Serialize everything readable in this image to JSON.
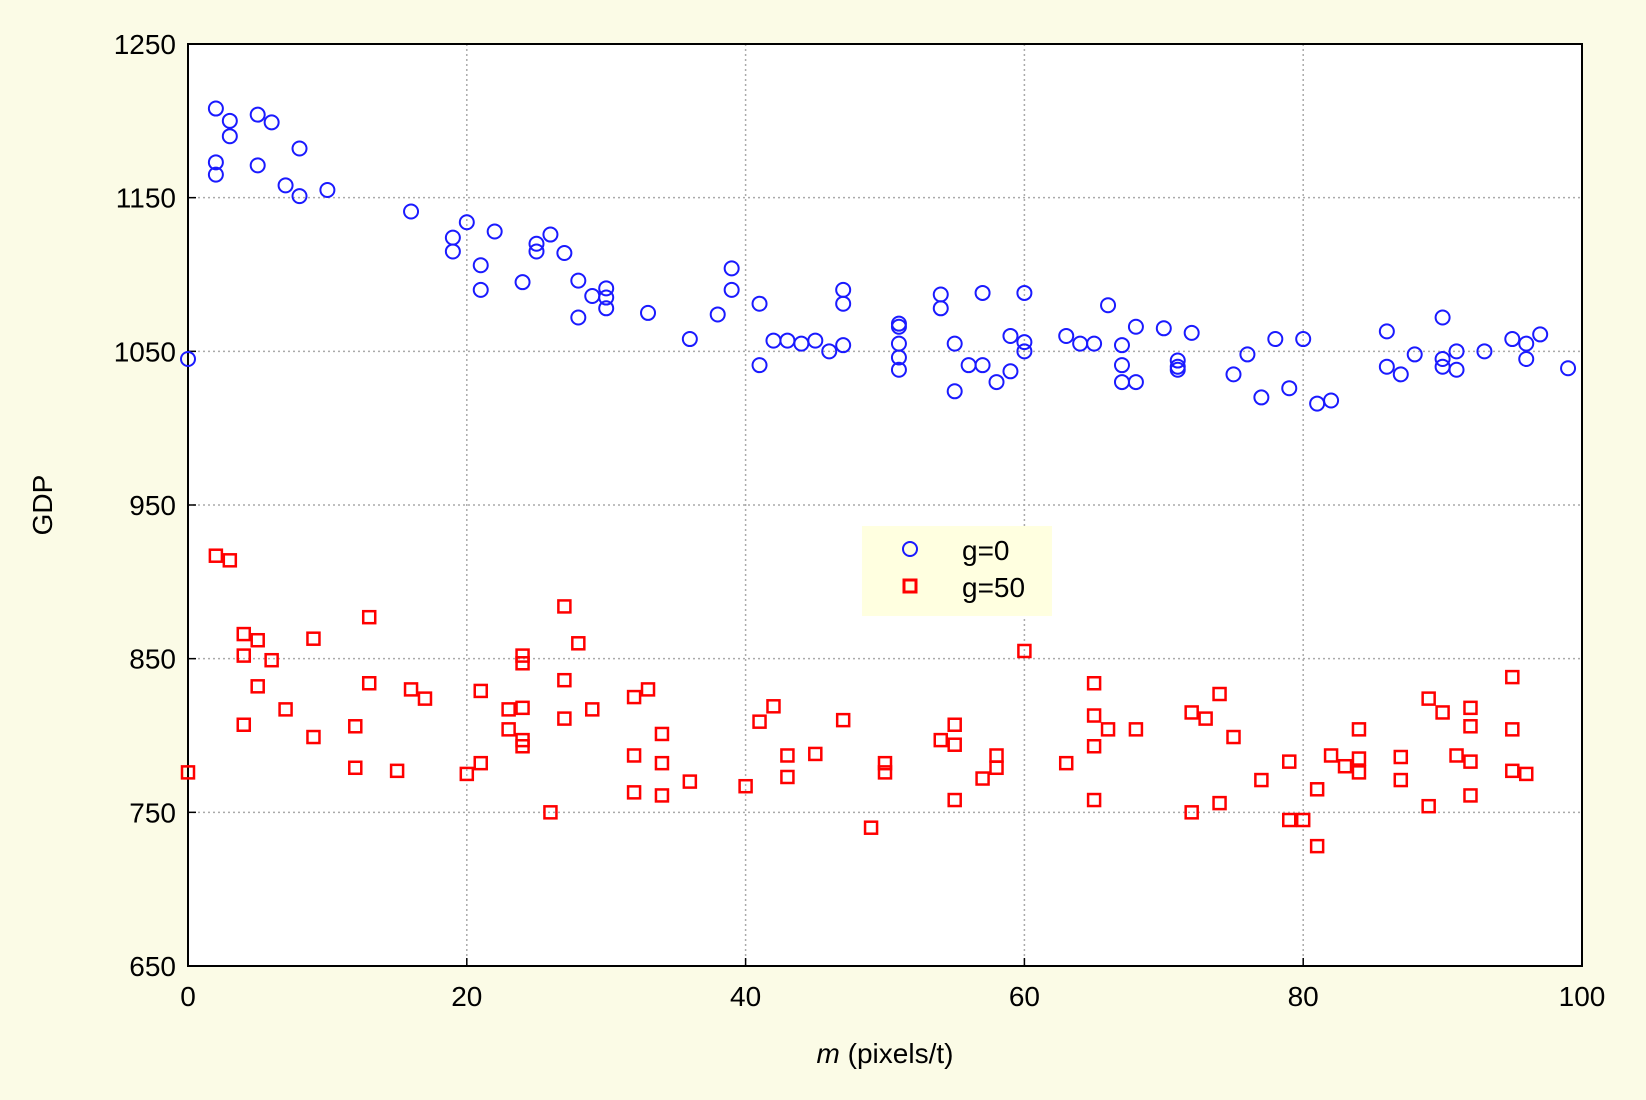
{
  "chart_data": {
    "type": "scatter",
    "xlabel_var": "m",
    "xlabel_rest": " (pixels/t)",
    "ylabel": "GDP",
    "xlim": [
      0,
      100
    ],
    "ylim": [
      650,
      1250
    ],
    "x_ticks": [
      0,
      20,
      40,
      60,
      80,
      100
    ],
    "y_ticks": [
      650,
      750,
      850,
      950,
      1050,
      1150,
      1250
    ],
    "grid": true,
    "legend_position": "center",
    "series": [
      {
        "name": "g=0",
        "marker": "circle",
        "color": "#1a1aff",
        "points": [
          [
            0,
            1045
          ],
          [
            2,
            1208
          ],
          [
            2,
            1173
          ],
          [
            2,
            1165
          ],
          [
            3,
            1200
          ],
          [
            3,
            1190
          ],
          [
            5,
            1204
          ],
          [
            5,
            1171
          ],
          [
            6,
            1199
          ],
          [
            7,
            1158
          ],
          [
            8,
            1182
          ],
          [
            8,
            1151
          ],
          [
            10,
            1155
          ],
          [
            16,
            1141
          ],
          [
            19,
            1124
          ],
          [
            19,
            1115
          ],
          [
            20,
            1134
          ],
          [
            21,
            1106
          ],
          [
            21,
            1090
          ],
          [
            22,
            1128
          ],
          [
            24,
            1095
          ],
          [
            25,
            1120
          ],
          [
            25,
            1115
          ],
          [
            26,
            1126
          ],
          [
            27,
            1114
          ],
          [
            28,
            1096
          ],
          [
            28,
            1072
          ],
          [
            29,
            1086
          ],
          [
            30,
            1091
          ],
          [
            30,
            1085
          ],
          [
            30,
            1078
          ],
          [
            33,
            1075
          ],
          [
            36,
            1058
          ],
          [
            38,
            1074
          ],
          [
            39,
            1104
          ],
          [
            39,
            1090
          ],
          [
            41,
            1081
          ],
          [
            41,
            1041
          ],
          [
            42,
            1057
          ],
          [
            43,
            1057
          ],
          [
            44,
            1055
          ],
          [
            45,
            1057
          ],
          [
            46,
            1050
          ],
          [
            47,
            1090
          ],
          [
            47,
            1081
          ],
          [
            47,
            1054
          ],
          [
            51,
            1068
          ],
          [
            51,
            1066
          ],
          [
            51,
            1055
          ],
          [
            51,
            1046
          ],
          [
            51,
            1038
          ],
          [
            54,
            1087
          ],
          [
            54,
            1078
          ],
          [
            55,
            1055
          ],
          [
            55,
            1024
          ],
          [
            56,
            1041
          ],
          [
            57,
            1088
          ],
          [
            57,
            1041
          ],
          [
            58,
            1030
          ],
          [
            59,
            1060
          ],
          [
            59,
            1037
          ],
          [
            60,
            1088
          ],
          [
            60,
            1056
          ],
          [
            60,
            1050
          ],
          [
            63,
            1060
          ],
          [
            64,
            1055
          ],
          [
            65,
            1055
          ],
          [
            66,
            1080
          ],
          [
            67,
            1054
          ],
          [
            67,
            1041
          ],
          [
            67,
            1030
          ],
          [
            68,
            1030
          ],
          [
            68,
            1066
          ],
          [
            70,
            1065
          ],
          [
            71,
            1044
          ],
          [
            71,
            1040
          ],
          [
            71,
            1038
          ],
          [
            72,
            1062
          ],
          [
            75,
            1035
          ],
          [
            76,
            1048
          ],
          [
            77,
            1020
          ],
          [
            78,
            1058
          ],
          [
            79,
            1026
          ],
          [
            80,
            1058
          ],
          [
            81,
            1016
          ],
          [
            82,
            1018
          ],
          [
            86,
            1063
          ],
          [
            86,
            1040
          ],
          [
            87,
            1035
          ],
          [
            88,
            1048
          ],
          [
            90,
            1072
          ],
          [
            90,
            1045
          ],
          [
            90,
            1040
          ],
          [
            91,
            1050
          ],
          [
            91,
            1038
          ],
          [
            93,
            1050
          ],
          [
            95,
            1058
          ],
          [
            96,
            1055
          ],
          [
            96,
            1045
          ],
          [
            97,
            1061
          ],
          [
            99,
            1039
          ]
        ]
      },
      {
        "name": "g=50",
        "marker": "square",
        "color": "#ff0000",
        "points": [
          [
            0,
            776
          ],
          [
            2,
            917
          ],
          [
            3,
            914
          ],
          [
            4,
            866
          ],
          [
            4,
            852
          ],
          [
            4,
            807
          ],
          [
            5,
            862
          ],
          [
            5,
            832
          ],
          [
            6,
            849
          ],
          [
            7,
            817
          ],
          [
            9,
            863
          ],
          [
            9,
            799
          ],
          [
            12,
            806
          ],
          [
            12,
            779
          ],
          [
            13,
            877
          ],
          [
            13,
            834
          ],
          [
            15,
            777
          ],
          [
            16,
            830
          ],
          [
            17,
            824
          ],
          [
            20,
            775
          ],
          [
            21,
            829
          ],
          [
            21,
            782
          ],
          [
            23,
            817
          ],
          [
            23,
            804
          ],
          [
            24,
            852
          ],
          [
            24,
            847
          ],
          [
            24,
            818
          ],
          [
            24,
            797
          ],
          [
            24,
            793
          ],
          [
            26,
            750
          ],
          [
            27,
            884
          ],
          [
            27,
            836
          ],
          [
            27,
            811
          ],
          [
            28,
            860
          ],
          [
            29,
            817
          ],
          [
            32,
            825
          ],
          [
            32,
            787
          ],
          [
            32,
            763
          ],
          [
            33,
            830
          ],
          [
            34,
            801
          ],
          [
            34,
            782
          ],
          [
            34,
            761
          ],
          [
            36,
            770
          ],
          [
            40,
            767
          ],
          [
            41,
            809
          ],
          [
            42,
            819
          ],
          [
            43,
            787
          ],
          [
            43,
            773
          ],
          [
            45,
            788
          ],
          [
            47,
            810
          ],
          [
            49,
            740
          ],
          [
            50,
            782
          ],
          [
            50,
            776
          ],
          [
            54,
            797
          ],
          [
            55,
            807
          ],
          [
            55,
            794
          ],
          [
            55,
            758
          ],
          [
            57,
            772
          ],
          [
            58,
            787
          ],
          [
            58,
            779
          ],
          [
            60,
            855
          ],
          [
            63,
            782
          ],
          [
            65,
            834
          ],
          [
            65,
            813
          ],
          [
            65,
            793
          ],
          [
            65,
            758
          ],
          [
            66,
            804
          ],
          [
            68,
            804
          ],
          [
            72,
            815
          ],
          [
            72,
            750
          ],
          [
            73,
            811
          ],
          [
            74,
            827
          ],
          [
            74,
            756
          ],
          [
            75,
            799
          ],
          [
            77,
            771
          ],
          [
            79,
            783
          ],
          [
            79,
            745
          ],
          [
            80,
            745
          ],
          [
            81,
            765
          ],
          [
            81,
            728
          ],
          [
            82,
            787
          ],
          [
            83,
            780
          ],
          [
            84,
            804
          ],
          [
            84,
            785
          ],
          [
            84,
            776
          ],
          [
            87,
            786
          ],
          [
            87,
            771
          ],
          [
            89,
            824
          ],
          [
            89,
            754
          ],
          [
            90,
            815
          ],
          [
            91,
            787
          ],
          [
            92,
            818
          ],
          [
            92,
            806
          ],
          [
            92,
            783
          ],
          [
            92,
            761
          ],
          [
            95,
            838
          ],
          [
            95,
            804
          ],
          [
            95,
            777
          ],
          [
            96,
            775
          ]
        ]
      }
    ]
  }
}
